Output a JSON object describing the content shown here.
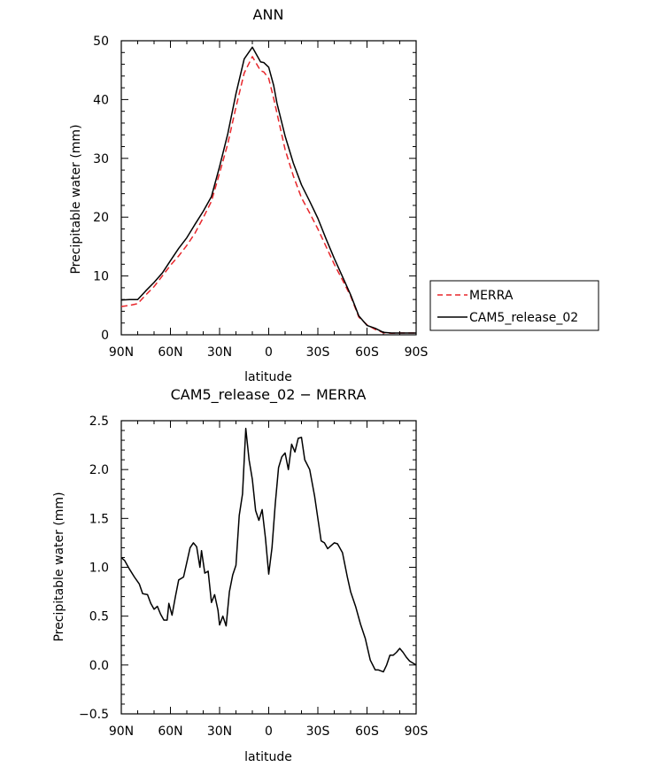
{
  "chart_data": [
    {
      "type": "line",
      "title": "ANN",
      "xlabel": "latitude",
      "ylabel": "Precipitable water (mm)",
      "xlim": [
        90,
        -90
      ],
      "ylim": [
        0,
        50
      ],
      "xticks": [
        {
          "value": 90,
          "label": "90N"
        },
        {
          "value": 60,
          "label": "60N"
        },
        {
          "value": 30,
          "label": "30N"
        },
        {
          "value": 0,
          "label": "0"
        },
        {
          "value": -30,
          "label": "30S"
        },
        {
          "value": -60,
          "label": "60S"
        },
        {
          "value": -90,
          "label": "90S"
        }
      ],
      "yticks": [
        {
          "value": 0,
          "label": "0"
        },
        {
          "value": 10,
          "label": "10"
        },
        {
          "value": 20,
          "label": "20"
        },
        {
          "value": 30,
          "label": "30"
        },
        {
          "value": 40,
          "label": "40"
        },
        {
          "value": 50,
          "label": "50"
        }
      ],
      "x": [
        90,
        85,
        80,
        75,
        70,
        65,
        60,
        55,
        50,
        45,
        40,
        35,
        30,
        25,
        20,
        15,
        10,
        5,
        3,
        0,
        -3,
        -5,
        -10,
        -15,
        -20,
        -25,
        -30,
        -35,
        -40,
        -45,
        -50,
        -55,
        -60,
        -65,
        -70,
        -75,
        -80,
        -85,
        -90
      ],
      "series": [
        {
          "name": "MERRA",
          "color": "#e8262b",
          "dash": true,
          "values": [
            4.8,
            5.0,
            5.3,
            6.8,
            8.2,
            10.0,
            11.8,
            13.4,
            15.2,
            17.3,
            19.9,
            22.7,
            27.5,
            32.5,
            38.7,
            44.5,
            47.3,
            44.9,
            44.7,
            43.6,
            40.2,
            37.7,
            31.5,
            27.0,
            23.3,
            20.7,
            18.0,
            15.0,
            12.0,
            9.3,
            6.6,
            3.0,
            1.7,
            0.9,
            0.35,
            0.25,
            0.3,
            0.3,
            0.3
          ]
        },
        {
          "name": "CAM5_release_02",
          "color": "#000000",
          "dash": false,
          "values": [
            5.9,
            6.0,
            6.0,
            7.5,
            8.9,
            10.5,
            12.6,
            14.7,
            16.5,
            18.8,
            21.0,
            23.5,
            28.6,
            34.2,
            41.0,
            46.9,
            48.9,
            46.4,
            46.3,
            45.5,
            42.4,
            39.4,
            33.8,
            29.2,
            25.5,
            22.7,
            19.8,
            16.3,
            13.0,
            9.9,
            6.8,
            3.2,
            1.6,
            1.1,
            0.4,
            0.3,
            0.3,
            0.3,
            0.3
          ]
        }
      ],
      "legend": "right",
      "grid": false
    },
    {
      "type": "line",
      "title": "CAM5_release_02 − MERRA",
      "xlabel": "latitude",
      "ylabel": "Precipitable water (mm)",
      "xlim": [
        90,
        -90
      ],
      "ylim": [
        -0.5,
        2.5
      ],
      "xticks": [
        {
          "value": 90,
          "label": "90N"
        },
        {
          "value": 60,
          "label": "60N"
        },
        {
          "value": 30,
          "label": "30N"
        },
        {
          "value": 0,
          "label": "0"
        },
        {
          "value": -30,
          "label": "30S"
        },
        {
          "value": -60,
          "label": "60S"
        },
        {
          "value": -90,
          "label": "90S"
        }
      ],
      "yticks": [
        {
          "value": -0.5,
          "label": "−0.5"
        },
        {
          "value": 0.0,
          "label": "0.0"
        },
        {
          "value": 0.5,
          "label": "0.5"
        },
        {
          "value": 1.0,
          "label": "1.0"
        },
        {
          "value": 1.5,
          "label": "1.5"
        },
        {
          "value": 2.0,
          "label": "2.0"
        },
        {
          "value": 2.5,
          "label": "2.5"
        }
      ],
      "x": [
        90,
        88,
        85,
        82,
        79,
        77,
        74,
        72,
        70,
        68,
        66,
        64,
        62,
        61,
        59,
        57,
        55,
        52,
        50,
        48,
        46,
        44,
        42,
        41,
        39,
        37,
        35,
        33,
        31,
        30,
        28,
        26,
        24,
        22,
        20,
        18,
        16,
        14,
        12,
        10,
        8,
        6,
        4,
        2,
        0,
        -2,
        -4,
        -6,
        -8,
        -10,
        -12,
        -14,
        -16,
        -18,
        -20,
        -22,
        -25,
        -28,
        -30,
        -32,
        -34,
        -36,
        -38,
        -40,
        -42,
        -45,
        -48,
        -50,
        -53,
        -56,
        -59,
        -62,
        -65,
        -67,
        -70,
        -72,
        -74,
        -76,
        -78,
        -80,
        -82,
        -84,
        -86,
        -88,
        -90
      ],
      "series": [
        {
          "name": "CAM5_release_02 − MERRA",
          "color": "#000000",
          "dash": false,
          "values": [
            1.1,
            1.07,
            0.98,
            0.9,
            0.83,
            0.73,
            0.72,
            0.63,
            0.57,
            0.6,
            0.52,
            0.46,
            0.46,
            0.63,
            0.51,
            0.7,
            0.87,
            0.9,
            1.05,
            1.2,
            1.25,
            1.21,
            1.0,
            1.17,
            0.94,
            0.96,
            0.64,
            0.72,
            0.56,
            0.41,
            0.5,
            0.4,
            0.75,
            0.92,
            1.02,
            1.53,
            1.75,
            2.42,
            2.1,
            1.9,
            1.58,
            1.48,
            1.59,
            1.3,
            0.93,
            1.2,
            1.65,
            2.02,
            2.13,
            2.17,
            2.0,
            2.26,
            2.18,
            2.32,
            2.33,
            2.1,
            2.0,
            1.73,
            1.5,
            1.27,
            1.25,
            1.19,
            1.22,
            1.25,
            1.24,
            1.15,
            0.9,
            0.75,
            0.6,
            0.42,
            0.27,
            0.05,
            -0.05,
            -0.05,
            -0.07,
            0.0,
            0.1,
            0.1,
            0.13,
            0.17,
            0.13,
            0.08,
            0.04,
            0.02,
            0.0
          ]
        }
      ],
      "legend": "none",
      "grid": false
    }
  ]
}
